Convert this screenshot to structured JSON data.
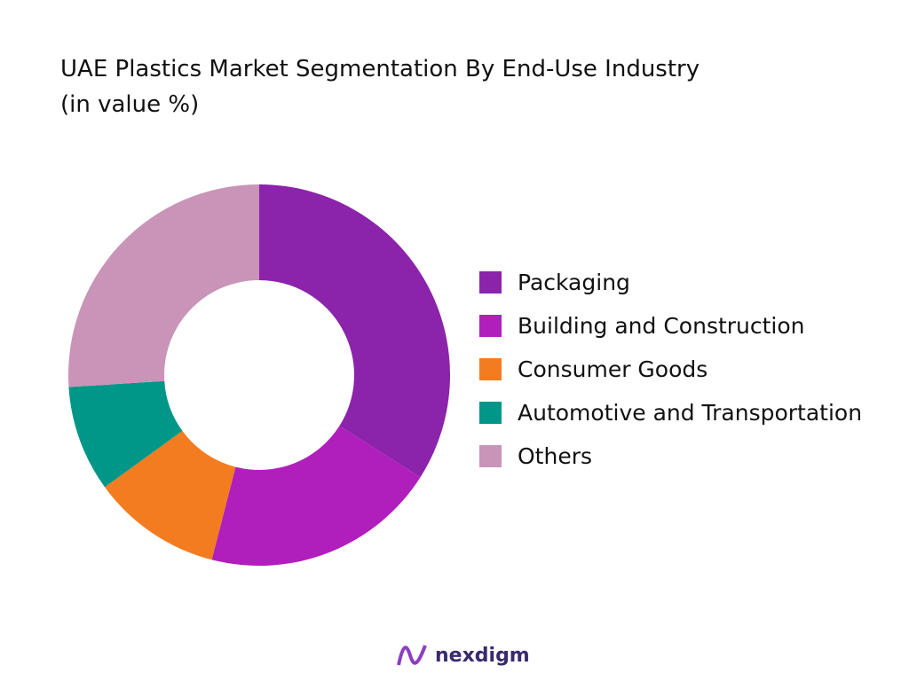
{
  "chart_data": {
    "type": "donut",
    "title": "UAE Plastics Market Segmentation By End-Use Industry (in value %)",
    "categories": [
      "Packaging",
      "Building and Construction",
      "Consumer Goods",
      "Automotive and Transportation",
      "Others"
    ],
    "values": [
      34,
      20,
      11,
      9,
      26
    ],
    "colors": [
      "#8b23ab",
      "#b01fbb",
      "#f47c20",
      "#009688",
      "#c994b8"
    ],
    "legend": "right"
  },
  "brand": "nexdigm"
}
